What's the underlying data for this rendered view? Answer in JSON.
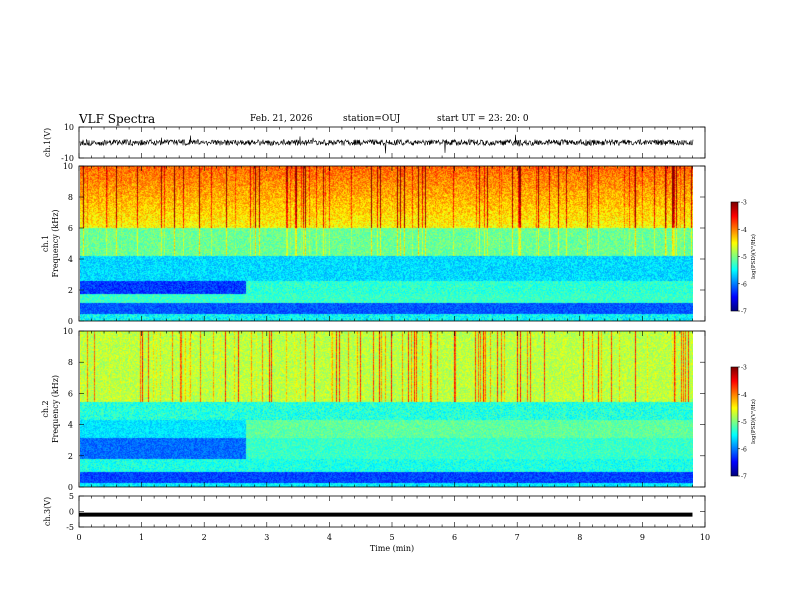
{
  "header": {
    "title": "VLF Spectra",
    "date": "Feb. 21, 2026",
    "station": "station=OUJ",
    "start": "start  UT =   23: 20: 0"
  },
  "chart_data": [
    {
      "type": "line",
      "panel": "waveform-ch1",
      "ylabel": "ch.1(V)",
      "ylim": [
        -10,
        10
      ],
      "yticks": [
        "10",
        "-10"
      ],
      "xlim": [
        0,
        10
      ],
      "series": [
        {
          "values_description_free": true,
          "x": [
            0,
            9.8
          ],
          "y_mean": 0,
          "y_range": [
            -2,
            2
          ]
        }
      ],
      "color": "#000000"
    },
    {
      "type": "heatmap",
      "panel": "spectrogram-ch1",
      "ylabel_line1": "ch.1",
      "ylabel_line2": "Frequency (kHz)",
      "ylim": [
        0,
        10
      ],
      "yticks": [
        "0",
        "2",
        "4",
        "6",
        "8",
        "10"
      ],
      "xlim": [
        0,
        10
      ],
      "data_end": 9.8,
      "colorbar": {
        "label": "log(PSD)(V²/Hz)",
        "ticks": [
          "-3",
          "-4",
          "-5",
          "-6",
          "-7"
        ],
        "range": [
          -7,
          -3
        ]
      }
    },
    {
      "type": "heatmap",
      "panel": "spectrogram-ch2",
      "ylabel_line1": "ch.2",
      "ylabel_line2": "Frequency (kHz)",
      "ylim": [
        0,
        10
      ],
      "yticks": [
        "0",
        "2",
        "4",
        "6",
        "8",
        "10"
      ],
      "xlim": [
        0,
        10
      ],
      "data_end": 9.8,
      "colorbar": {
        "label": "log(PSD)(V²/Hz)",
        "ticks": [
          "-3",
          "-4",
          "-5",
          "-6",
          "-7"
        ],
        "range": [
          -7,
          -3
        ]
      }
    },
    {
      "type": "line",
      "panel": "waveform-ch3",
      "ylabel": "ch.3(V)",
      "ylim": [
        -5,
        5
      ],
      "yticks": [
        "5",
        "0",
        "-5"
      ],
      "xlim": [
        0,
        10
      ],
      "series": [
        {
          "x": [
            0,
            9.8
          ],
          "y": [
            -1,
            -1
          ]
        }
      ],
      "xlabel": "Time (min)",
      "xticks": [
        "0",
        "1",
        "2",
        "3",
        "4",
        "5",
        "6",
        "7",
        "8",
        "9",
        "10"
      ]
    }
  ]
}
